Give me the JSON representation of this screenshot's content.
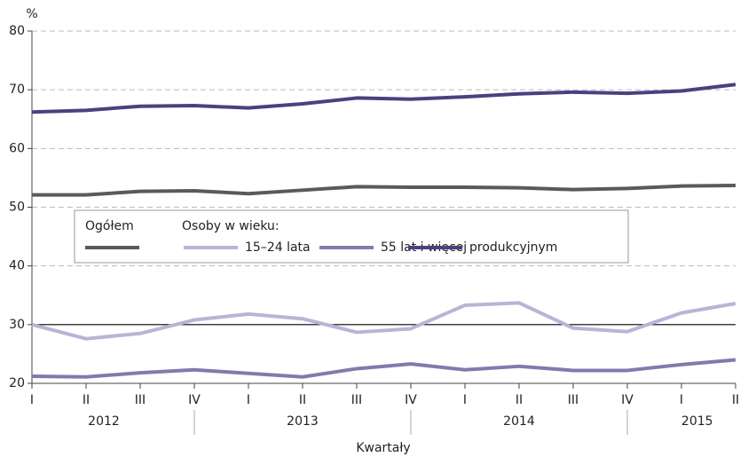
{
  "chart_data": {
    "type": "line",
    "y_label": "%",
    "x_label": "Kwartały",
    "legend_group_label": "Osoby w wieku:",
    "categories": [
      "I",
      "II",
      "III",
      "IV",
      "I",
      "II",
      "III",
      "IV",
      "I",
      "II",
      "III",
      "IV",
      "I",
      "II"
    ],
    "groups": [
      {
        "label": "2012",
        "count": 4
      },
      {
        "label": "2013",
        "count": 4
      },
      {
        "label": "2014",
        "count": 4
      },
      {
        "label": "2015",
        "count": 2
      }
    ],
    "ylim": [
      20,
      80
    ],
    "yticks": [
      20,
      30,
      40,
      50,
      60,
      70,
      80
    ],
    "grid": true,
    "reference_line": 30,
    "series": [
      {
        "name": "Ogółem",
        "color": "#5a5a5a",
        "values": [
          52.1,
          52.1,
          52.7,
          52.8,
          52.3,
          52.9,
          53.5,
          53.4,
          53.4,
          53.3,
          53.0,
          53.2,
          53.6,
          53.7
        ]
      },
      {
        "name": "15–24 lata",
        "color": "#b9b4d6",
        "values": [
          30.0,
          27.6,
          28.5,
          30.8,
          31.8,
          31.0,
          28.7,
          29.3,
          33.3,
          33.7,
          29.4,
          28.8,
          32.0,
          33.6
        ]
      },
      {
        "name": "55 lat i więcej",
        "color": "#8479ae",
        "values": [
          21.2,
          21.1,
          21.8,
          22.3,
          21.7,
          21.1,
          22.5,
          23.3,
          22.3,
          22.9,
          22.2,
          22.2,
          23.2,
          24.0
        ]
      },
      {
        "name": "produkcyjnym",
        "color": "#4e3f80",
        "values": [
          66.2,
          66.5,
          67.2,
          67.3,
          66.9,
          67.6,
          68.6,
          68.4,
          68.8,
          69.3,
          69.6,
          69.4,
          69.8,
          70.9
        ]
      }
    ]
  }
}
